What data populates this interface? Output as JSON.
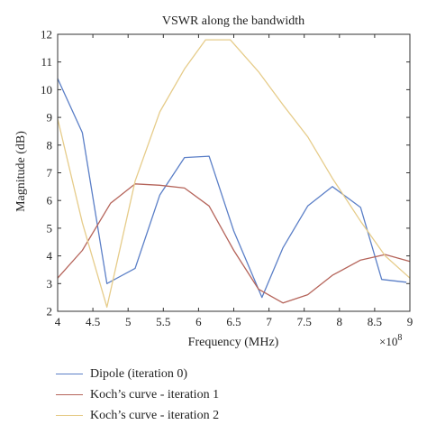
{
  "chart_data": {
    "type": "line",
    "title": "VSWR along the bandwidth",
    "xlabel": "Frequency (MHz)",
    "ylabel": "Magnitude (dB)",
    "x_multiplier": "×10",
    "x_exponent": "8",
    "xlim": [
      4,
      9
    ],
    "ylim": [
      2,
      12
    ],
    "xticks": [
      "4",
      "4.5",
      "5",
      "5.5",
      "6",
      "6.5",
      "7",
      "7.5",
      "8",
      "8.5",
      "9"
    ],
    "xtick_values": [
      4,
      4.5,
      5,
      5.5,
      6,
      6.5,
      7,
      7.5,
      8,
      8.5,
      9
    ],
    "yticks": [
      "2",
      "3",
      "4",
      "5",
      "6",
      "7",
      "8",
      "9",
      "10",
      "11",
      "12"
    ],
    "ytick_values": [
      2,
      3,
      4,
      5,
      6,
      7,
      8,
      9,
      10,
      11,
      12
    ],
    "grid": false,
    "legend_position": "bottom",
    "series": [
      {
        "name": "Dipole (iteration 0)",
        "color": "#5b7fc7",
        "x": [
          4.0,
          4.35,
          4.7,
          5.1,
          5.45,
          5.8,
          6.15,
          6.5,
          6.9,
          7.2,
          7.55,
          7.9,
          8.3,
          8.6,
          8.95
        ],
        "y": [
          10.4,
          8.45,
          3.0,
          3.55,
          6.2,
          7.55,
          7.6,
          4.9,
          2.5,
          4.3,
          5.8,
          6.5,
          5.75,
          3.15,
          3.05
        ]
      },
      {
        "name": "Koch’s curve - iteration 1",
        "color": "#b5645a",
        "x": [
          4.0,
          4.35,
          4.75,
          5.1,
          5.45,
          5.8,
          6.15,
          6.5,
          6.85,
          7.2,
          7.55,
          7.9,
          8.3,
          8.65,
          9.0
        ],
        "y": [
          3.2,
          4.2,
          5.9,
          6.6,
          6.55,
          6.45,
          5.8,
          4.2,
          2.8,
          2.3,
          2.6,
          3.3,
          3.85,
          4.05,
          3.8
        ]
      },
      {
        "name": "Koch’s curve - iteration 2",
        "color": "#e6cc8a",
        "x": [
          4.0,
          4.35,
          4.7,
          5.1,
          5.45,
          5.8,
          6.1,
          6.45,
          6.85,
          7.2,
          7.55,
          7.9,
          8.3,
          8.65,
          9.0
        ],
        "y": [
          8.95,
          5.2,
          2.15,
          6.7,
          9.2,
          10.75,
          11.8,
          11.8,
          10.65,
          9.45,
          8.3,
          6.8,
          5.25,
          4.0,
          3.2
        ]
      }
    ]
  }
}
